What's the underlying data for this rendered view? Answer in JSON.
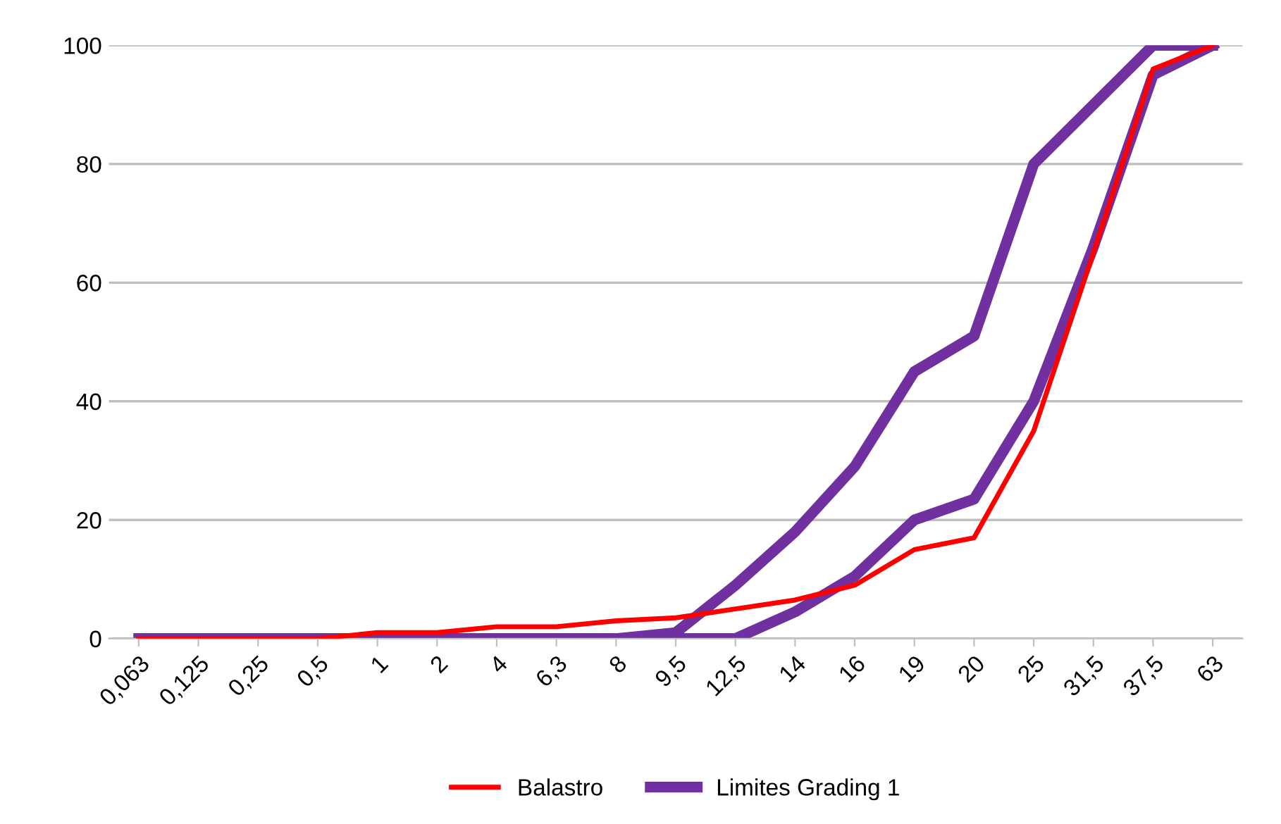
{
  "chart_data": {
    "type": "line",
    "categories": [
      "0,063",
      "0,125",
      "0,25",
      "0,5",
      "1",
      "2",
      "4",
      "6,3",
      "8",
      "9,5",
      "12,5",
      "14",
      "16",
      "19",
      "20",
      "25",
      "31,5",
      "37,5",
      "63"
    ],
    "series": [
      {
        "name": "Balastro",
        "color": "#ff0000",
        "values": [
          0,
          0,
          0,
          0,
          1,
          1,
          2,
          2,
          3,
          3.5,
          5,
          6.5,
          9,
          15,
          17,
          35,
          65,
          96,
          100
        ]
      },
      {
        "name": "Limites Grading 1",
        "color": "#7030a0",
        "values": [
          0,
          0,
          0,
          0,
          0,
          0,
          0,
          0,
          0,
          1,
          9,
          18,
          29,
          45,
          51,
          80,
          90,
          100,
          100
        ]
      },
      {
        "color": "#7030a0",
        "values": [
          null,
          null,
          null,
          null,
          null,
          null,
          null,
          null,
          null,
          0,
          0,
          4.5,
          10.5,
          20,
          23.5,
          40,
          66,
          95,
          100
        ]
      }
    ],
    "ylim": [
      0,
      100
    ],
    "yticks": [
      0,
      20,
      40,
      60,
      80,
      100
    ],
    "grid": "y",
    "legend": "bottom",
    "marker": "none",
    "line_style": "solid"
  }
}
